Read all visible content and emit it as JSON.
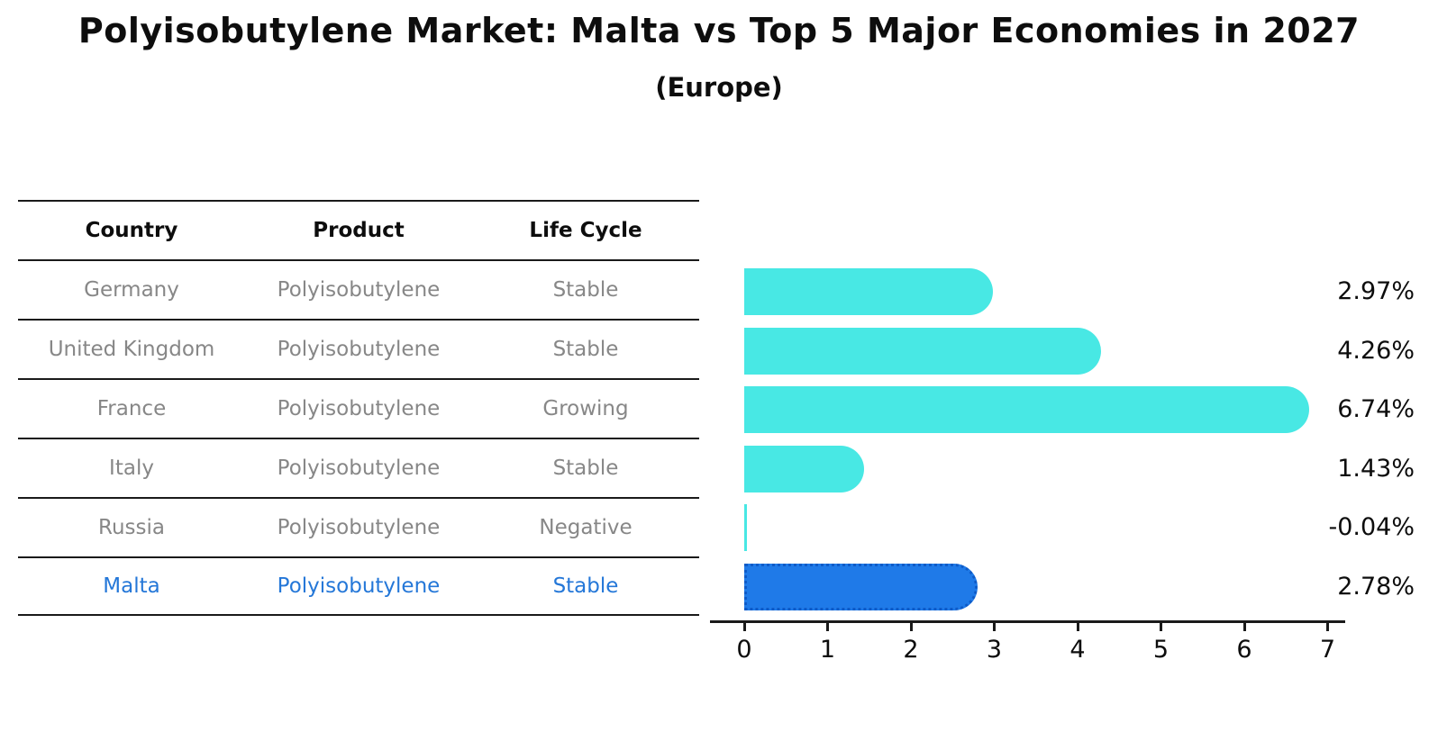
{
  "title": "Polyisobutylene Market: Malta vs Top 5 Major Economies in 2027",
  "subtitle": "(Europe)",
  "table": {
    "headers": [
      "Country",
      "Product",
      "Life Cycle"
    ],
    "rows": [
      {
        "country": "Germany",
        "product": "Polyisobutylene",
        "life_cycle": "Stable",
        "highlight": false
      },
      {
        "country": "United Kingdom",
        "product": "Polyisobutylene",
        "life_cycle": "Stable",
        "highlight": false
      },
      {
        "country": "France",
        "product": "Polyisobutylene",
        "life_cycle": "Growing",
        "highlight": false
      },
      {
        "country": "Italy",
        "product": "Polyisobutylene",
        "life_cycle": "Stable",
        "highlight": false
      },
      {
        "country": "Russia",
        "product": "Polyisobutylene",
        "life_cycle": "Negative",
        "highlight": false
      },
      {
        "country": "Malta",
        "product": "Polyisobutylene",
        "life_cycle": "Stable",
        "highlight": true
      }
    ]
  },
  "chart_data": {
    "type": "bar",
    "orientation": "horizontal",
    "title": "Polyisobutylene Market: Malta vs Top 5 Major Economies in 2027 (Europe)",
    "categories": [
      "Germany",
      "United Kingdom",
      "France",
      "Italy",
      "Russia",
      "Malta"
    ],
    "values": [
      2.97,
      4.26,
      6.74,
      1.43,
      -0.04,
      2.78
    ],
    "labels": [
      "2.97%",
      "4.26%",
      "6.74%",
      "1.43%",
      "-0.04%",
      "2.78%"
    ],
    "xlim": [
      0,
      7
    ],
    "xticks": [
      0,
      1,
      2,
      3,
      4,
      5,
      6,
      7
    ],
    "grid": false,
    "legend": false,
    "bar_color": "#48E8E4",
    "highlight_color": "#1F7AE8",
    "highlight_edge_color": "#0E5BC8",
    "highlight_text_color": "#2477D8",
    "highlight_index": 5
  }
}
